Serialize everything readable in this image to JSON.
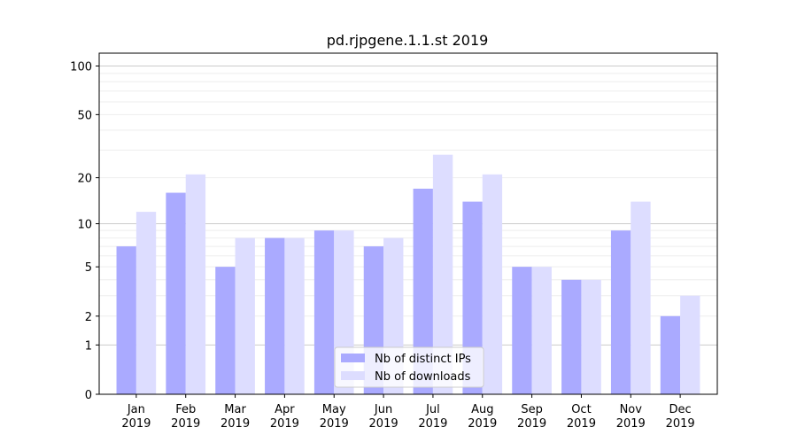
{
  "chart_data": {
    "type": "bar",
    "title": "pd.rjpgene.1.1.st 2019",
    "xlabel": "",
    "ylabel": "",
    "scale": "symlog",
    "categories": [
      [
        "Jan",
        "2019"
      ],
      [
        "Feb",
        "2019"
      ],
      [
        "Mar",
        "2019"
      ],
      [
        "Apr",
        "2019"
      ],
      [
        "May",
        "2019"
      ],
      [
        "Jun",
        "2019"
      ],
      [
        "Jul",
        "2019"
      ],
      [
        "Aug",
        "2019"
      ],
      [
        "Sep",
        "2019"
      ],
      [
        "Oct",
        "2019"
      ],
      [
        "Nov",
        "2019"
      ],
      [
        "Dec",
        "2019"
      ]
    ],
    "series": [
      {
        "name": "Nb of distinct IPs",
        "color": "#aaaaff",
        "values": [
          7,
          16,
          5,
          8,
          9,
          7,
          17,
          14,
          5,
          4,
          9,
          2
        ]
      },
      {
        "name": "Nb of downloads",
        "color": "#ddddff",
        "values": [
          12,
          21,
          8,
          8,
          9,
          8,
          28,
          21,
          5,
          4,
          14,
          3
        ]
      }
    ],
    "yticks": [
      0,
      1,
      2,
      5,
      10,
      20,
      50,
      100
    ],
    "ylim": [
      0,
      120
    ],
    "grid": true,
    "legend_position": "bottom-center"
  }
}
